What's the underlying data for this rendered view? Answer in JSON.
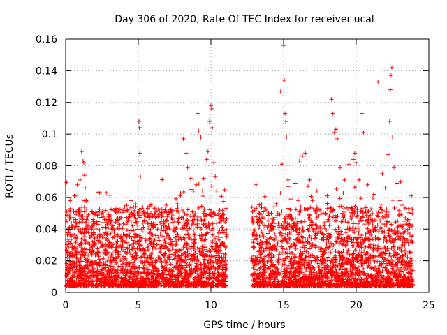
{
  "chart_data": {
    "type": "scatter",
    "title": "Day 306 of 2020, Rate Of TEC Index for receiver ucal",
    "xlabel": "GPS time / hours",
    "ylabel": "ROTI / TECUs",
    "xlim": [
      0,
      25
    ],
    "ylim": [
      0,
      0.16
    ],
    "x_ticks": [
      "0",
      "5",
      "10",
      "15",
      "20",
      "25"
    ],
    "y_ticks": [
      "0",
      "0.02",
      "0.04",
      "0.06",
      "0.08",
      "0.1",
      "0.12",
      "0.14",
      "0.16"
    ],
    "grid": true,
    "legend": "none",
    "marker": "+",
    "color": "#ff0000",
    "data_gap_hours": [
      11.1,
      12.8
    ],
    "series": [
      {
        "points": [
          [
            0.1,
            0.012
          ],
          [
            0.2,
            0.032
          ],
          [
            0.3,
            0.058
          ],
          [
            0.4,
            0.041
          ],
          [
            0.5,
            0.018
          ],
          [
            0.6,
            0.061
          ],
          [
            0.7,
            0.046
          ],
          [
            0.8,
            0.068
          ],
          [
            0.9,
            0.052
          ],
          [
            1.0,
            0.071
          ],
          [
            1.1,
            0.089
          ],
          [
            1.2,
            0.083
          ],
          [
            1.25,
            0.082
          ],
          [
            1.3,
            0.074
          ],
          [
            1.35,
            0.066
          ],
          [
            1.4,
            0.058
          ],
          [
            1.6,
            0.044
          ],
          [
            1.8,
            0.036
          ],
          [
            2.0,
            0.031
          ],
          [
            2.2,
            0.025
          ],
          [
            2.5,
            0.029
          ],
          [
            2.8,
            0.063
          ],
          [
            3.0,
            0.048
          ],
          [
            3.2,
            0.038
          ],
          [
            3.5,
            0.026
          ],
          [
            3.8,
            0.034
          ],
          [
            4.0,
            0.027
          ],
          [
            4.2,
            0.055
          ],
          [
            4.5,
            0.058
          ],
          [
            4.7,
            0.049
          ],
          [
            4.9,
            0.045
          ],
          [
            5.05,
            0.108
          ],
          [
            5.08,
            0.104
          ],
          [
            5.1,
            0.088
          ],
          [
            5.12,
            0.083
          ],
          [
            5.15,
            0.073
          ],
          [
            5.3,
            0.054
          ],
          [
            5.6,
            0.048
          ],
          [
            5.9,
            0.042
          ],
          [
            6.2,
            0.036
          ],
          [
            6.5,
            0.044
          ],
          [
            6.8,
            0.033
          ],
          [
            7.0,
            0.048
          ],
          [
            7.3,
            0.051
          ],
          [
            7.5,
            0.045
          ],
          [
            7.7,
            0.056
          ],
          [
            7.9,
            0.061
          ],
          [
            8.1,
            0.097
          ],
          [
            8.3,
            0.088
          ],
          [
            8.4,
            0.079
          ],
          [
            8.6,
            0.072
          ],
          [
            8.8,
            0.064
          ],
          [
            9.0,
            0.068
          ],
          [
            9.1,
            0.113
          ],
          [
            9.15,
            0.102
          ],
          [
            9.3,
            0.098
          ],
          [
            9.5,
            0.072
          ],
          [
            9.7,
            0.084
          ],
          [
            9.8,
            0.089
          ],
          [
            9.9,
            0.108
          ],
          [
            10.0,
            0.118
          ],
          [
            10.05,
            0.116
          ],
          [
            10.1,
            0.104
          ],
          [
            10.2,
            0.082
          ],
          [
            10.4,
            0.064
          ],
          [
            10.6,
            0.052
          ],
          [
            10.8,
            0.041
          ],
          [
            11.0,
            0.028
          ],
          [
            13.0,
            0.018
          ],
          [
            13.2,
            0.044
          ],
          [
            13.5,
            0.038
          ],
          [
            13.8,
            0.052
          ],
          [
            14.0,
            0.031
          ],
          [
            14.3,
            0.046
          ],
          [
            14.5,
            0.056
          ],
          [
            14.8,
            0.127
          ],
          [
            14.9,
            0.081
          ],
          [
            15.0,
            0.156
          ],
          [
            15.05,
            0.134
          ],
          [
            15.1,
            0.113
          ],
          [
            15.15,
            0.108
          ],
          [
            15.2,
            0.098
          ],
          [
            15.3,
            0.071
          ],
          [
            15.5,
            0.059
          ],
          [
            15.8,
            0.069
          ],
          [
            16.1,
            0.083
          ],
          [
            16.3,
            0.086
          ],
          [
            16.5,
            0.088
          ],
          [
            16.8,
            0.071
          ],
          [
            17.0,
            0.058
          ],
          [
            17.3,
            0.064
          ],
          [
            17.5,
            0.052
          ],
          [
            17.8,
            0.044
          ],
          [
            18.0,
            0.061
          ],
          [
            18.3,
            0.122
          ],
          [
            18.4,
            0.113
          ],
          [
            18.5,
            0.101
          ],
          [
            18.6,
            0.103
          ],
          [
            18.7,
            0.097
          ],
          [
            18.9,
            0.079
          ],
          [
            19.2,
            0.071
          ],
          [
            19.5,
            0.081
          ],
          [
            19.8,
            0.084
          ],
          [
            19.9,
            0.088
          ],
          [
            20.0,
            0.082
          ],
          [
            20.2,
            0.071
          ],
          [
            20.4,
            0.113
          ],
          [
            20.5,
            0.101
          ],
          [
            20.6,
            0.095
          ],
          [
            20.8,
            0.068
          ],
          [
            21.2,
            0.062
          ],
          [
            21.5,
            0.133
          ],
          [
            21.8,
            0.075
          ],
          [
            22.0,
            0.066
          ],
          [
            22.2,
            0.087
          ],
          [
            22.3,
            0.108
          ],
          [
            22.35,
            0.128
          ],
          [
            22.4,
            0.137
          ],
          [
            22.45,
            0.142
          ],
          [
            22.5,
            0.098
          ],
          [
            22.6,
            0.079
          ],
          [
            22.8,
            0.069
          ],
          [
            23.0,
            0.058
          ],
          [
            23.3,
            0.045
          ],
          [
            23.6,
            0.053
          ],
          [
            23.8,
            0.061
          ]
        ]
      }
    ]
  }
}
